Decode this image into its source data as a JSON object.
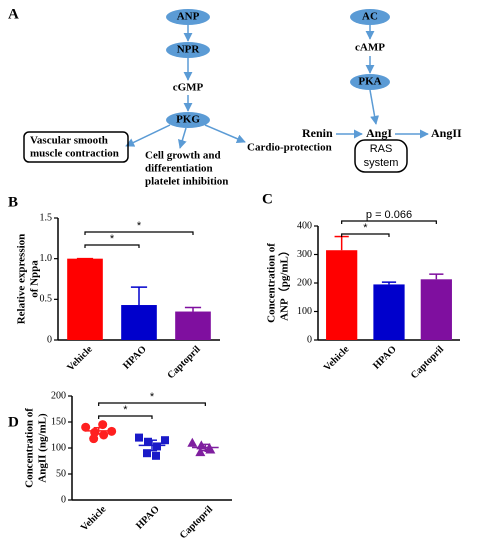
{
  "diagram": {
    "label": "A",
    "nodes": [
      "ANP",
      "NPR",
      "cGMP",
      "PKG",
      "AC",
      "cAMP",
      "PKA",
      "Renin",
      "AngI",
      "AngII"
    ],
    "vascular": [
      "Vascular smooth",
      "muscle contraction"
    ],
    "cell": [
      "Cell growth and",
      "differentiation",
      "platelet inhibition"
    ],
    "cardio": "Cardio-protection",
    "ras": [
      "RAS",
      "system"
    ]
  },
  "chart_data": [
    {
      "type": "bar",
      "panel": "B",
      "ylabel": [
        "Relative expression",
        "of Nppa"
      ],
      "categories": [
        "Vehicle",
        "HPAO",
        "Captopril"
      ],
      "values": [
        1.0,
        0.43,
        0.35
      ],
      "errors": [
        0,
        0.22,
        0.05
      ],
      "colors": [
        "#ff0000",
        "#0000cc",
        "#7f0f9f"
      ],
      "ylim": [
        0,
        1.5
      ],
      "yticks": [
        0,
        0.5,
        {
          "value": 1.0,
          "label": "1.0"
        },
        1.5
      ],
      "comparisons": [
        {
          "label": "*",
          "groups": [
            "Vehicle",
            "Captopril"
          ]
        },
        {
          "label": "*",
          "groups": [
            "Vehicle",
            "HPAO"
          ]
        }
      ]
    },
    {
      "type": "bar",
      "panel": "C",
      "ylabel": [
        "Concentration of",
        "ANP（pg/mL）"
      ],
      "categories": [
        "Vehicle",
        "HPAO",
        "Captopril"
      ],
      "values": [
        315,
        195,
        213
      ],
      "errors": [
        48,
        8,
        18
      ],
      "colors": [
        "#ff0000",
        "#0000cc",
        "#7f0f9f"
      ],
      "ylim": [
        0,
        400
      ],
      "yticks": [
        0,
        100,
        200,
        300,
        400
      ],
      "comparisons": [
        {
          "label": "p = 0.066",
          "groups": [
            "Vehicle",
            "Captopril"
          ]
        },
        {
          "label": "*",
          "groups": [
            "Vehicle",
            "HPAO"
          ]
        }
      ]
    },
    {
      "type": "dot",
      "panel": "D",
      "ylabel": [
        "Concentration of",
        "AngII (ng/mL)"
      ],
      "categories": [
        "Vehicle",
        "HPAO",
        "Captopril"
      ],
      "points": [
        [
          140,
          130,
          125,
          118,
          145,
          132
        ],
        [
          120,
          112,
          103,
          90,
          85,
          115
        ],
        [
          110,
          105,
          97,
          92,
          100
        ]
      ],
      "means": [
        133,
        105,
        101
      ],
      "errors": [
        6,
        10,
        6
      ],
      "colors": [
        "#ff2020",
        "#1a1ac8",
        "#7f1f9f"
      ],
      "ylim": [
        0,
        200
      ],
      "yticks": [
        0,
        50,
        100,
        150,
        200
      ],
      "comparisons": [
        {
          "label": "*",
          "groups": [
            "Vehicle",
            "Captopril"
          ]
        },
        {
          "label": "*",
          "groups": [
            "Vehicle",
            "HPAO"
          ]
        }
      ]
    }
  ]
}
